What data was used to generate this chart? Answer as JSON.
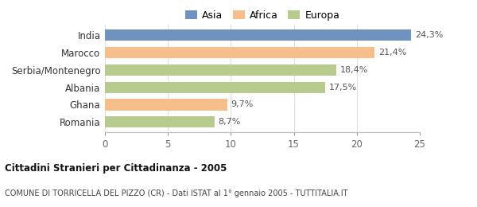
{
  "categories": [
    "India",
    "Marocco",
    "Serbia/Montenegro",
    "Albania",
    "Ghana",
    "Romania"
  ],
  "values": [
    24.3,
    21.4,
    18.4,
    17.5,
    9.7,
    8.7
  ],
  "colors": [
    "#7092be",
    "#f5be8b",
    "#b8cb8e",
    "#b8cb8e",
    "#f5be8b",
    "#b8cb8e"
  ],
  "labels": [
    "24,3%",
    "21,4%",
    "18,4%",
    "17,5%",
    "9,7%",
    "8,7%"
  ],
  "legend": [
    {
      "label": "Asia",
      "color": "#7092be"
    },
    {
      "label": "Africa",
      "color": "#f5be8b"
    },
    {
      "label": "Europa",
      "color": "#b8cb8e"
    }
  ],
  "xlim": [
    0,
    25
  ],
  "xticks": [
    0,
    5,
    10,
    15,
    20,
    25
  ],
  "title_bold": "Cittadini Stranieri per Cittadinanza - 2005",
  "subtitle": "COMUNE DI TORRICELLA DEL PIZZO (CR) - Dati ISTAT al 1° gennaio 2005 - TUTTITALIA.IT",
  "background_color": "#ffffff"
}
